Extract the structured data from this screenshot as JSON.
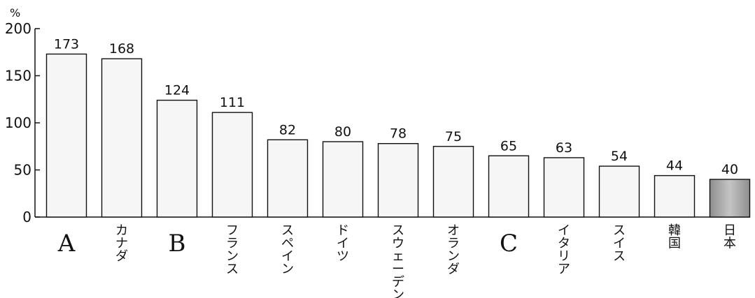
{
  "chart_data": {
    "type": "bar",
    "ylabel": "%",
    "ylim": [
      0,
      200
    ],
    "yticks": [
      0,
      50,
      100,
      150,
      200
    ],
    "categories": [
      "A",
      "カナダ",
      "B",
      "フランス",
      "スペイン",
      "ドイツ",
      "スウェーデン",
      "オランダ",
      "C",
      "イタリア",
      "スイス",
      "韓国",
      "日本"
    ],
    "values": [
      173,
      168,
      124,
      111,
      82,
      80,
      78,
      75,
      65,
      63,
      54,
      44,
      40
    ],
    "highlight_category": "日本",
    "colors": {
      "bar_fill": "#f6f6f6",
      "bar_highlight": "#a9a9a9",
      "bar_stroke": "#111111",
      "axis": "#111111"
    }
  }
}
